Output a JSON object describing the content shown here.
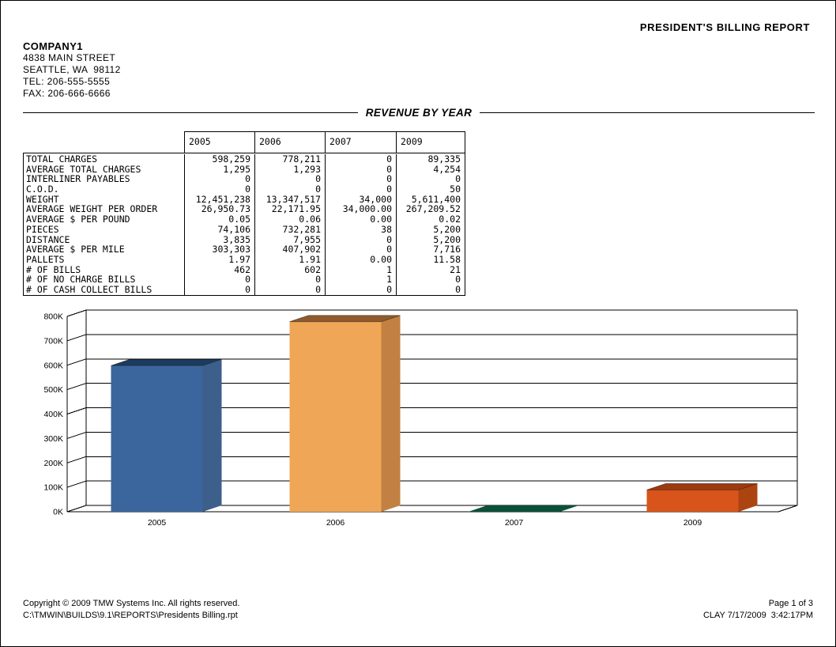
{
  "header": {
    "report_title": "PRESIDENT'S BILLING REPORT",
    "company_name": "COMPANY1",
    "address_line1": "4838 MAIN STREET",
    "address_line2": "SEATTLE, WA  98112",
    "tel": "TEL: 206-555-5555",
    "fax": "FAX: 206-666-6666"
  },
  "section": {
    "title": "REVENUE BY YEAR"
  },
  "table": {
    "year_columns": [
      "2005",
      "2006",
      "2007",
      "2009"
    ],
    "rows": [
      {
        "label": "TOTAL CHARGES",
        "values": [
          "598,259",
          "778,211",
          "0",
          "89,335"
        ]
      },
      {
        "label": "AVERAGE TOTAL CHARGES",
        "values": [
          "1,295",
          "1,293",
          "0",
          "4,254"
        ]
      },
      {
        "label": "INTERLINER PAYABLES",
        "values": [
          "0",
          "0",
          "0",
          "0"
        ]
      },
      {
        "label": "C.O.D.",
        "values": [
          "0",
          "0",
          "0",
          "50"
        ]
      },
      {
        "label": "WEIGHT",
        "values": [
          "12,451,238",
          "13,347,517",
          "34,000",
          "5,611,400"
        ]
      },
      {
        "label": "AVERAGE WEIGHT PER ORDER",
        "values": [
          "26,950.73",
          "22,171.95",
          "34,000.00",
          "267,209.52"
        ]
      },
      {
        "label": "AVERAGE $ PER POUND",
        "values": [
          "0.05",
          "0.06",
          "0.00",
          "0.02"
        ]
      },
      {
        "label": "PIECES",
        "values": [
          "74,106",
          "732,281",
          "38",
          "5,200"
        ]
      },
      {
        "label": "DISTANCE",
        "values": [
          "3,835",
          "7,955",
          "0",
          "5,200"
        ]
      },
      {
        "label": "AVERAGE $ PER MILE",
        "values": [
          "303,303",
          "407,902",
          "0",
          "7,716"
        ]
      },
      {
        "label": "PALLETS",
        "values": [
          "1.97",
          "1.91",
          "0.00",
          "11.58"
        ]
      },
      {
        "label": "# OF BILLS",
        "values": [
          "462",
          "602",
          "1",
          "21"
        ]
      },
      {
        "label": "# OF NO CHARGE BILLS",
        "values": [
          "0",
          "0",
          "1",
          "0"
        ]
      },
      {
        "label": "# OF CASH COLLECT BILLS",
        "values": [
          "0",
          "0",
          "0",
          "0"
        ]
      }
    ]
  },
  "chart_data": {
    "type": "bar",
    "style": "3d",
    "title": "",
    "xlabel": "",
    "ylabel": "",
    "categories": [
      "2005",
      "2006",
      "2007",
      "2009"
    ],
    "values": [
      598259,
      778211,
      0,
      89335
    ],
    "ylim": [
      0,
      800000
    ],
    "ytick_interval": 100000,
    "ytick_labels": [
      "0K",
      "100K",
      "200K",
      "300K",
      "400K",
      "500K",
      "600K",
      "700K",
      "800K"
    ],
    "grid": true,
    "legend": false,
    "bar_colors": [
      {
        "front": "#3A669D",
        "side": "#3D5F8C",
        "top": "#1D3B5E"
      },
      {
        "front": "#EFA656",
        "side": "#C28142",
        "top": "#8F5B2B"
      },
      {
        "front": "#0A5138",
        "side": "#0A5138",
        "top": "#0A5138"
      },
      {
        "front": "#D9541B",
        "side": "#AC4412",
        "top": "#9C3A10"
      }
    ],
    "line_color": "#000000"
  },
  "footer": {
    "copyright": "Copyright © 2009 TMW Systems Inc. All rights reserved.",
    "file_path": "C:\\TMWIN\\BUILDS\\9.1\\REPORTS\\Presidents Billing.rpt",
    "page_info": "Page 1 of 3",
    "generated_by": "CLAY 7/17/2009  3:42:17PM"
  }
}
